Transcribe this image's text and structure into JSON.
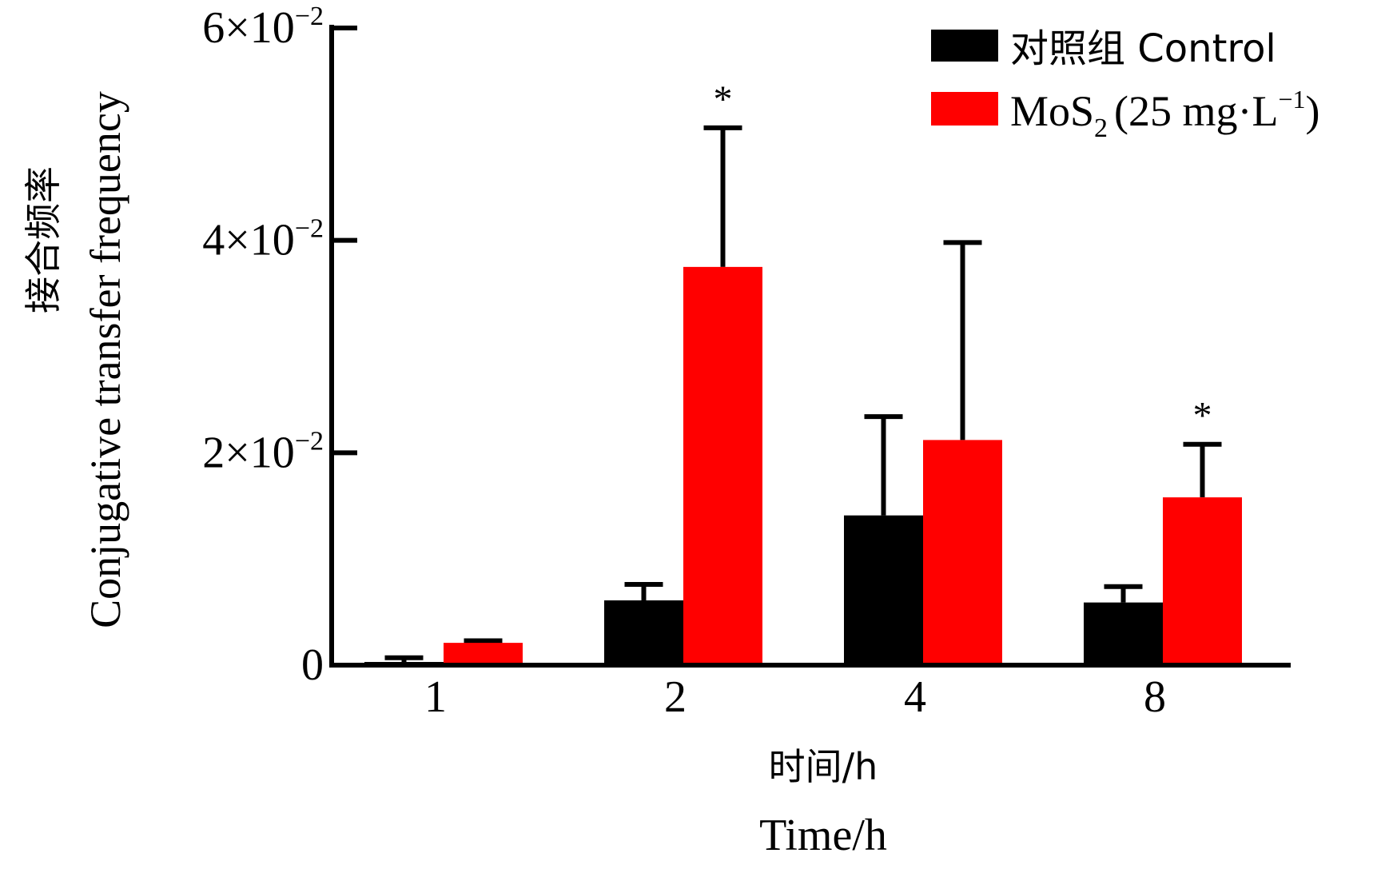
{
  "chart_data": {
    "type": "bar",
    "categories": [
      "1",
      "2",
      "4",
      "8"
    ],
    "series": [
      {
        "name": "对照组 Control",
        "color": "#000000",
        "values": [
          0.0003,
          0.0061,
          0.0141,
          0.0059
        ],
        "errors": [
          0.0004,
          0.0015,
          0.0093,
          0.0015
        ]
      },
      {
        "name": "MoS₂ (25 mg·L⁻¹)",
        "color": "#ff0000",
        "values": [
          0.0021,
          0.0375,
          0.0212,
          0.0158
        ],
        "errors": [
          0.0002,
          0.0131,
          0.0186,
          0.005
        ]
      }
    ],
    "significance": [
      {
        "category": "2",
        "series": 1,
        "label": "*"
      },
      {
        "category": "8",
        "series": 1,
        "label": "*"
      }
    ],
    "ylim": [
      0,
      0.06
    ],
    "yticks": [
      {
        "value": 0,
        "label": "0",
        "exp": ""
      },
      {
        "value": 0.02,
        "label": "2×10",
        "exp": "−2"
      },
      {
        "value": 0.04,
        "label": "4×10",
        "exp": "−2"
      },
      {
        "value": 0.06,
        "label": "6×10",
        "exp": "−2"
      }
    ],
    "ylabel_cn": "接合频率",
    "ylabel_en": "Conjugative transfer frequency",
    "xlabel_cn": "时间/h",
    "xlabel_en": "Time/h",
    "legend": {
      "position": "top-right",
      "control_label": "对照组 Control",
      "mos2_main": "MoS",
      "mos2_sub": "2",
      "mos2_rest": "(25 mg·L",
      "mos2_sup": "−1",
      "mos2_close": ")"
    },
    "grid": false
  }
}
